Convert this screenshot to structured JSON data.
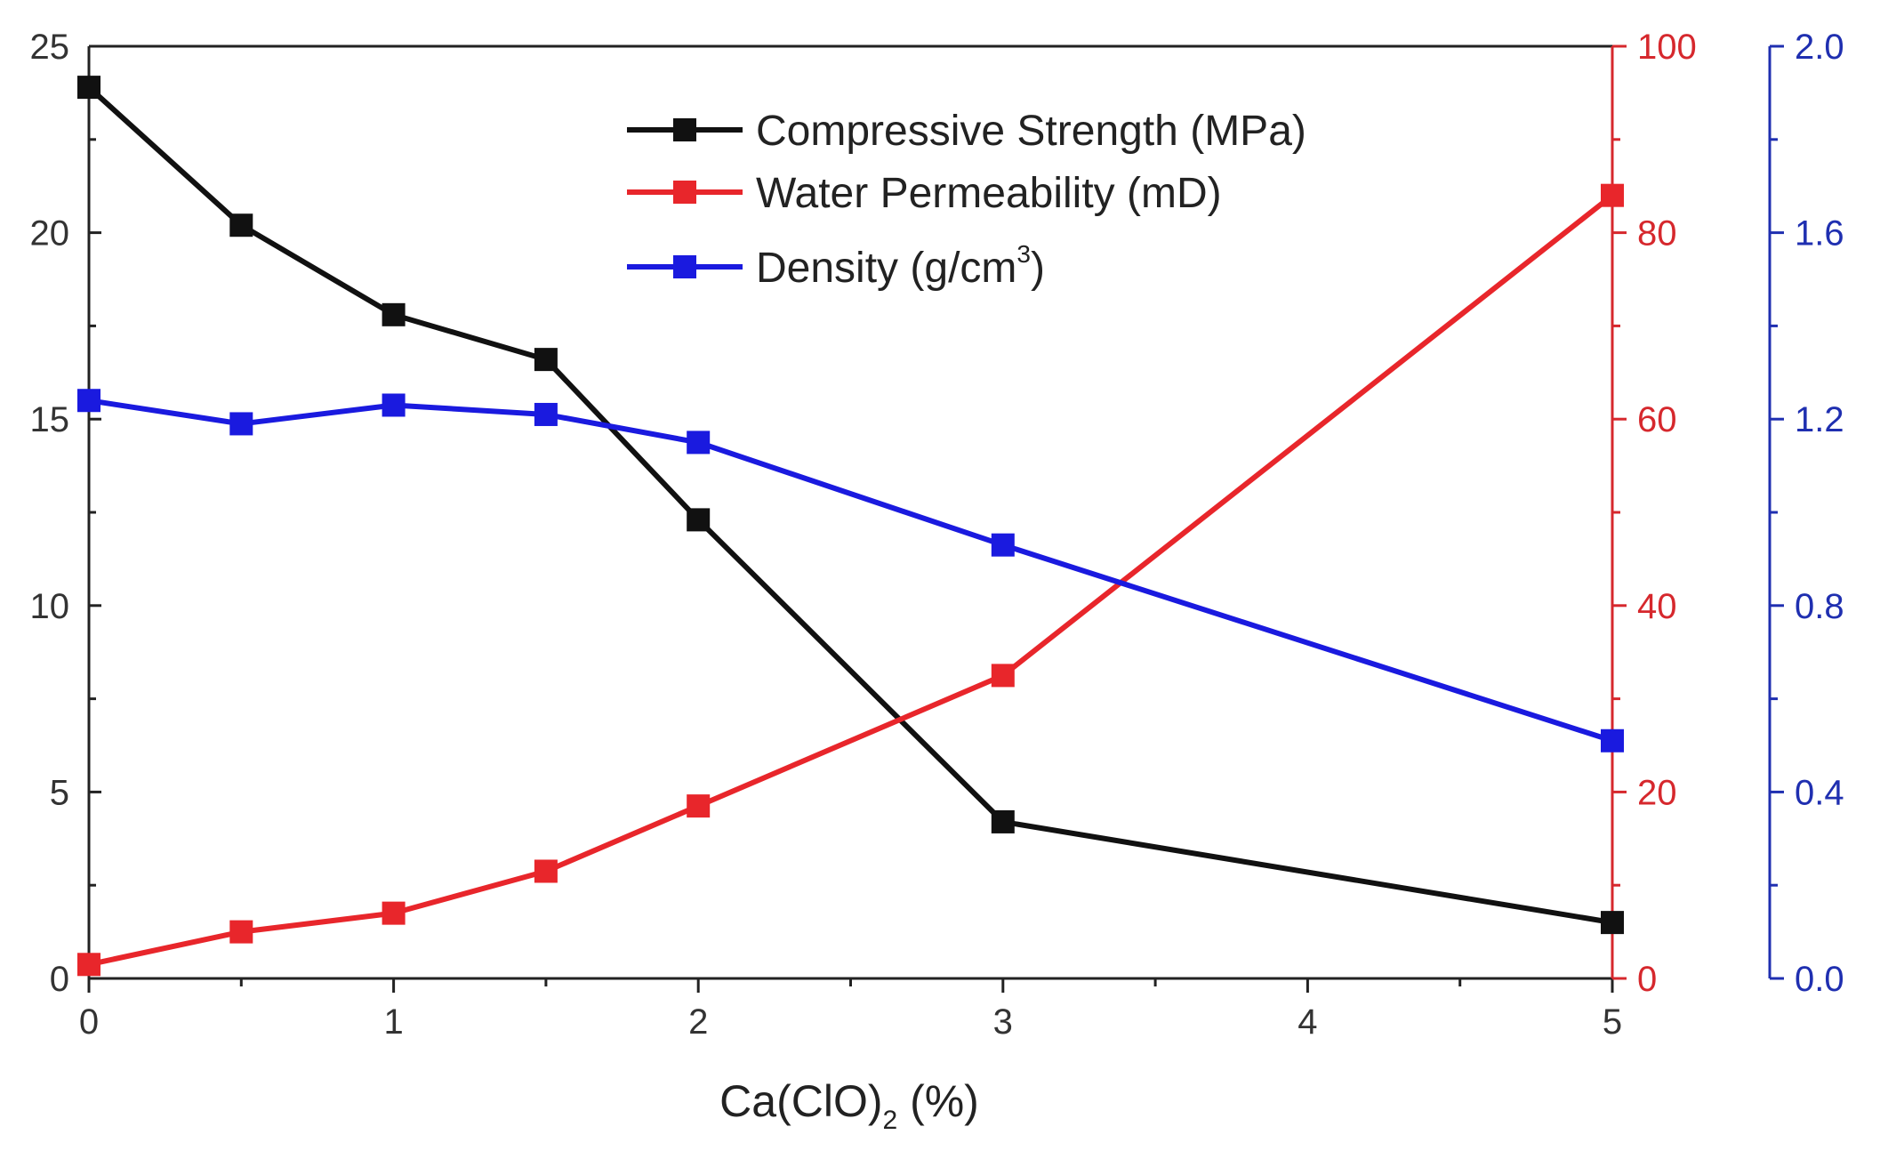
{
  "chart_data": {
    "type": "line",
    "xlabel": "Ca(ClO)",
    "xlabel_subscript": "2",
    "xlabel_suffix": " (%)",
    "xlim": [
      0,
      5
    ],
    "x_ticks": [
      0,
      1,
      2,
      3,
      4,
      5
    ],
    "x_tick_labels": [
      "0",
      "1",
      "2",
      "3",
      "4",
      "5"
    ],
    "x": [
      0,
      0.5,
      1,
      1.5,
      2,
      3,
      5
    ],
    "axes": {
      "left": {
        "ylim": [
          0,
          25
        ],
        "ticks": [
          0,
          5,
          10,
          15,
          20,
          25
        ],
        "tick_labels": [
          "0",
          "5",
          "10",
          "15",
          "20",
          "25"
        ],
        "color": "#333333"
      },
      "right1": {
        "ylim": [
          0,
          100
        ],
        "ticks": [
          0,
          20,
          40,
          60,
          80,
          100
        ],
        "tick_labels": [
          "0",
          "20",
          "40",
          "60",
          "80",
          "100"
        ],
        "color": "#d6282d"
      },
      "right2": {
        "ylim": [
          0,
          2.0
        ],
        "ticks": [
          0,
          0.4,
          0.8,
          1.2,
          1.6,
          2.0
        ],
        "tick_labels": [
          "0.0",
          "0.4",
          "0.8",
          "1.2",
          "1.6",
          "2.0"
        ],
        "color": "#1f2fb0"
      }
    },
    "series": [
      {
        "name": "Compressive Strength (MPa)",
        "axis": "left",
        "color": "#111111",
        "values": [
          23.9,
          20.2,
          17.8,
          16.6,
          12.3,
          4.2,
          1.5
        ]
      },
      {
        "name": "Water Permeability (mD)",
        "axis": "right1",
        "color": "#e8262b",
        "values": [
          1.5,
          5,
          7,
          11.5,
          18.5,
          32.5,
          84
        ]
      },
      {
        "name": "Density (g/cm",
        "name_sup": "3",
        "name_suffix": ")",
        "axis": "right2",
        "color": "#1a1adf",
        "values": [
          1.24,
          1.19,
          1.23,
          1.21,
          1.15,
          0.93,
          0.51
        ]
      }
    ],
    "legend_placement": "top-center",
    "grid": false
  }
}
